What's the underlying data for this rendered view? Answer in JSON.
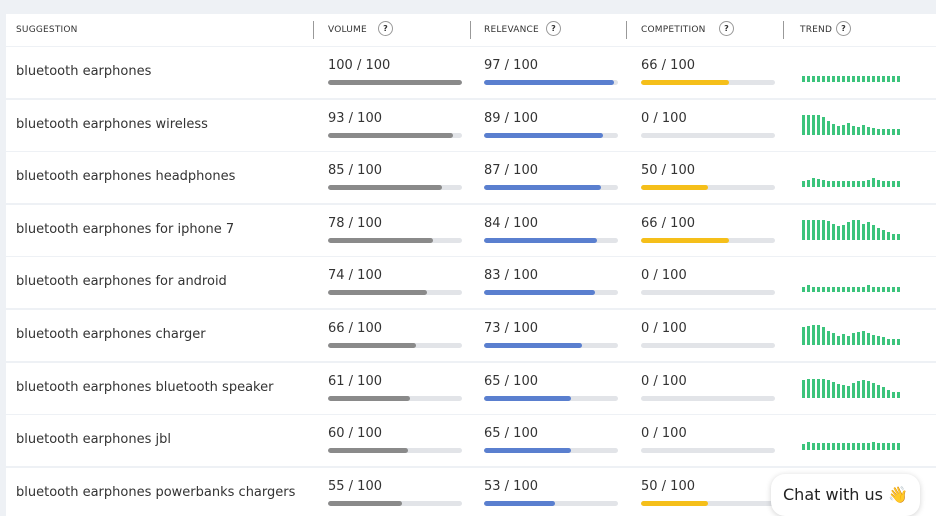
{
  "score_max": 100,
  "columns": [
    {
      "label": "SUGGESTION"
    },
    {
      "label": "VOLUME",
      "help": "?"
    },
    {
      "label": "RELEVANCE",
      "help": "?"
    },
    {
      "label": "COMPETITION",
      "help": "?"
    },
    {
      "label": "TREND",
      "help": "?"
    }
  ],
  "rows": [
    {
      "suggestion": "bluetooth earphones",
      "volume": {
        "value": 100,
        "label": "100 / 100"
      },
      "relevance": {
        "value": 97,
        "label": "97 / 100"
      },
      "competition": {
        "value": 66,
        "label": "66 / 100"
      },
      "trend": [
        30,
        30,
        30,
        30,
        30,
        30,
        30,
        30,
        30,
        30,
        30,
        30,
        30,
        30,
        30,
        30,
        30,
        30,
        30,
        30
      ]
    },
    {
      "suggestion": "bluetooth earphones wireless",
      "volume": {
        "value": 93,
        "label": "93 / 100"
      },
      "relevance": {
        "value": 89,
        "label": "89 / 100"
      },
      "competition": {
        "value": 0,
        "label": "0 / 100"
      },
      "trend": [
        100,
        100,
        100,
        100,
        90,
        70,
        55,
        45,
        50,
        60,
        45,
        40,
        50,
        40,
        35,
        30,
        30,
        30,
        30,
        30
      ]
    },
    {
      "suggestion": "bluetooth earphones headphones",
      "volume": {
        "value": 85,
        "label": "85 / 100"
      },
      "relevance": {
        "value": 87,
        "label": "87 / 100"
      },
      "competition": {
        "value": 50,
        "label": "50 / 100"
      },
      "trend": [
        30,
        35,
        45,
        40,
        35,
        30,
        30,
        30,
        30,
        30,
        30,
        30,
        30,
        35,
        45,
        35,
        30,
        30,
        30,
        30
      ]
    },
    {
      "suggestion": "bluetooth earphones for iphone 7",
      "volume": {
        "value": 78,
        "label": "78 / 100"
      },
      "relevance": {
        "value": 84,
        "label": "84 / 100"
      },
      "competition": {
        "value": 66,
        "label": "66 / 100"
      },
      "trend": [
        100,
        100,
        100,
        100,
        100,
        95,
        80,
        70,
        75,
        90,
        100,
        100,
        80,
        90,
        75,
        60,
        50,
        40,
        30,
        30
      ]
    },
    {
      "suggestion": "bluetooth earphones for android",
      "volume": {
        "value": 74,
        "label": "74 / 100"
      },
      "relevance": {
        "value": 83,
        "label": "83 / 100"
      },
      "competition": {
        "value": 0,
        "label": "0 / 100"
      },
      "trend": [
        25,
        35,
        25,
        25,
        25,
        25,
        25,
        25,
        25,
        25,
        25,
        25,
        25,
        35,
        25,
        25,
        25,
        25,
        25,
        25
      ]
    },
    {
      "suggestion": "bluetooth earphones charger",
      "volume": {
        "value": 66,
        "label": "66 / 100"
      },
      "relevance": {
        "value": 73,
        "label": "73 / 100"
      },
      "competition": {
        "value": 0,
        "label": "0 / 100"
      },
      "trend": [
        90,
        95,
        100,
        100,
        90,
        70,
        60,
        45,
        55,
        45,
        60,
        65,
        70,
        60,
        50,
        45,
        40,
        30,
        30,
        30
      ]
    },
    {
      "suggestion": "bluetooth earphones bluetooth speaker",
      "volume": {
        "value": 61,
        "label": "61 / 100"
      },
      "relevance": {
        "value": 65,
        "label": "65 / 100"
      },
      "competition": {
        "value": 0,
        "label": "0 / 100"
      },
      "trend": [
        90,
        95,
        95,
        95,
        95,
        90,
        80,
        70,
        65,
        60,
        75,
        85,
        90,
        85,
        75,
        65,
        55,
        40,
        30,
        30
      ]
    },
    {
      "suggestion": "bluetooth earphones jbl",
      "volume": {
        "value": 60,
        "label": "60 / 100"
      },
      "relevance": {
        "value": 65,
        "label": "65 / 100"
      },
      "competition": {
        "value": 0,
        "label": "0 / 100"
      },
      "trend": [
        30,
        40,
        35,
        35,
        35,
        35,
        35,
        35,
        35,
        35,
        35,
        35,
        35,
        35,
        40,
        35,
        35,
        35,
        35,
        35
      ]
    },
    {
      "suggestion": "bluetooth earphones powerbanks chargers",
      "volume": {
        "value": 55,
        "label": "55 / 100"
      },
      "relevance": {
        "value": 53,
        "label": "53 / 100"
      },
      "competition": {
        "value": 50,
        "label": "50 / 100"
      }
    }
  ],
  "chat": "Chat with us 👋"
}
